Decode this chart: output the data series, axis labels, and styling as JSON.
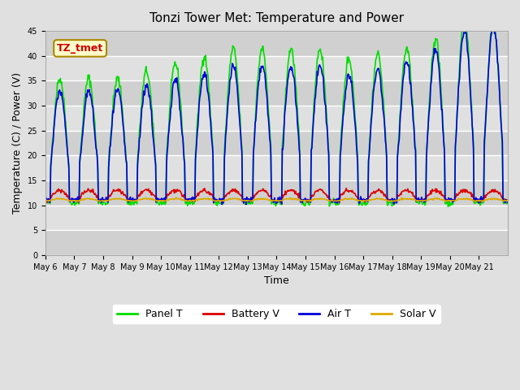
{
  "title": "Tonzi Tower Met: Temperature and Power",
  "xlabel": "Time",
  "ylabel": "Temperature (C) / Power (V)",
  "ylim": [
    0,
    45
  ],
  "yticks": [
    0,
    5,
    10,
    15,
    20,
    25,
    30,
    35,
    40,
    45
  ],
  "x_labels": [
    "May 6",
    "May 7",
    "May 8",
    "May 9",
    "May 10",
    "May 11",
    "May 12",
    "May 13",
    "May 14",
    "May 15",
    "May 16",
    "May 17",
    "May 18",
    "May 19",
    "May 20",
    "May 21"
  ],
  "x_tick_positions": [
    0,
    1,
    2,
    3,
    4,
    5,
    6,
    7,
    8,
    9,
    10,
    11,
    12,
    13,
    14,
    15
  ],
  "annotation_text": "TZ_tmet",
  "annotation_color": "#cc0000",
  "annotation_bg": "#ffffcc",
  "annotation_border": "#aa8800",
  "colors": {
    "Panel T": "#00dd00",
    "Battery V": "#dd0000",
    "Air T": "#0000dd",
    "Solar V": "#ddaa00"
  },
  "legend_labels": [
    "Panel T",
    "Battery V",
    "Air T",
    "Solar V"
  ],
  "background_color": "#e0e0e0",
  "plot_bg": "#f0f0f0",
  "grid_color": "#ffffff",
  "num_days": 16,
  "seed": 42
}
